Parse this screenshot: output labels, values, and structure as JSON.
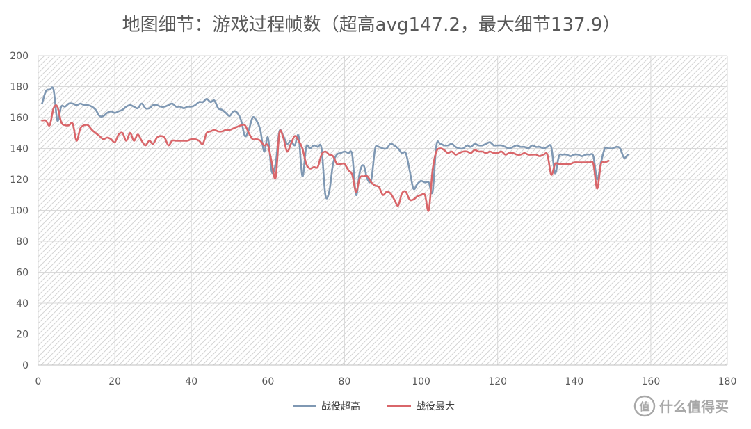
{
  "chart_data": {
    "type": "line",
    "title": "地图细节：游戏过程帧数（超高avg147.2，最大细节137.9）",
    "xlabel": "",
    "ylabel": "",
    "xlim": [
      0,
      180
    ],
    "ylim": [
      0,
      200
    ],
    "x_ticks": [
      0,
      20,
      40,
      60,
      80,
      100,
      120,
      140,
      160,
      180
    ],
    "y_ticks": [
      0,
      20,
      40,
      60,
      80,
      100,
      120,
      140,
      160,
      180,
      200
    ],
    "grid": true,
    "legend": "bottom",
    "series": [
      {
        "name": "战役超高",
        "color": "#7f98b3",
        "points": [
          [
            1,
            169
          ],
          [
            2,
            177
          ],
          [
            3,
            178
          ],
          [
            4,
            178
          ],
          [
            5,
            158
          ],
          [
            6,
            167
          ],
          [
            7,
            167
          ],
          [
            8,
            169
          ],
          [
            9,
            169
          ],
          [
            10,
            168
          ],
          [
            11,
            169
          ],
          [
            12,
            168
          ],
          [
            13,
            168
          ],
          [
            14,
            167
          ],
          [
            15,
            165
          ],
          [
            16,
            161
          ],
          [
            17,
            161
          ],
          [
            18,
            163
          ],
          [
            19,
            164
          ],
          [
            20,
            163
          ],
          [
            21,
            164
          ],
          [
            22,
            165
          ],
          [
            23,
            167
          ],
          [
            24,
            168
          ],
          [
            25,
            167
          ],
          [
            26,
            166
          ],
          [
            27,
            169
          ],
          [
            28,
            166
          ],
          [
            29,
            166
          ],
          [
            30,
            168
          ],
          [
            31,
            168
          ],
          [
            32,
            167
          ],
          [
            33,
            167
          ],
          [
            34,
            168
          ],
          [
            35,
            169
          ],
          [
            36,
            167
          ],
          [
            37,
            167
          ],
          [
            38,
            166
          ],
          [
            39,
            167
          ],
          [
            40,
            167
          ],
          [
            41,
            168
          ],
          [
            42,
            170
          ],
          [
            43,
            170
          ],
          [
            44,
            172
          ],
          [
            45,
            170
          ],
          [
            46,
            171
          ],
          [
            47,
            166
          ],
          [
            48,
            165
          ],
          [
            49,
            163
          ],
          [
            50,
            161
          ],
          [
            51,
            164
          ],
          [
            52,
            163
          ],
          [
            53,
            158
          ],
          [
            54,
            148
          ],
          [
            55,
            152
          ],
          [
            56,
            160
          ],
          [
            57,
            158
          ],
          [
            58,
            152
          ],
          [
            59,
            138
          ],
          [
            60,
            147
          ],
          [
            61,
            125
          ],
          [
            62,
            130
          ],
          [
            63,
            151
          ],
          [
            64,
            148
          ],
          [
            65,
            143
          ],
          [
            66,
            145
          ],
          [
            67,
            142
          ],
          [
            68,
            148
          ],
          [
            69,
            122
          ],
          [
            70,
            141
          ],
          [
            71,
            140
          ],
          [
            72,
            142
          ],
          [
            73,
            141
          ],
          [
            74,
            140
          ],
          [
            75,
            110
          ],
          [
            76,
            112
          ],
          [
            77,
            130
          ],
          [
            78,
            136
          ],
          [
            79,
            137
          ],
          [
            80,
            138
          ],
          [
            81,
            137
          ],
          [
            82,
            136
          ],
          [
            83,
            110
          ],
          [
            84,
            125
          ],
          [
            85,
            129
          ],
          [
            86,
            120
          ],
          [
            87,
            120
          ],
          [
            88,
            140
          ],
          [
            89,
            141
          ],
          [
            90,
            140
          ],
          [
            91,
            140
          ],
          [
            92,
            143
          ],
          [
            93,
            142
          ],
          [
            94,
            140
          ],
          [
            95,
            137
          ],
          [
            96,
            137
          ],
          [
            97,
            126
          ],
          [
            98,
            114
          ],
          [
            99,
            117
          ],
          [
            100,
            119
          ],
          [
            101,
            118
          ],
          [
            102,
            118
          ],
          [
            103,
            112
          ],
          [
            104,
            142
          ],
          [
            105,
            143
          ],
          [
            106,
            142
          ],
          [
            107,
            142
          ],
          [
            108,
            143
          ],
          [
            109,
            141
          ],
          [
            110,
            140
          ],
          [
            111,
            140
          ],
          [
            112,
            142
          ],
          [
            113,
            141
          ],
          [
            114,
            143
          ],
          [
            115,
            142
          ],
          [
            116,
            142
          ],
          [
            117,
            143
          ],
          [
            118,
            144
          ],
          [
            119,
            142
          ],
          [
            120,
            142
          ],
          [
            121,
            142
          ],
          [
            122,
            141
          ],
          [
            123,
            140
          ],
          [
            124,
            141
          ],
          [
            125,
            142
          ],
          [
            126,
            141
          ],
          [
            127,
            141
          ],
          [
            128,
            140
          ],
          [
            129,
            142
          ],
          [
            130,
            141
          ],
          [
            131,
            141
          ],
          [
            132,
            140
          ],
          [
            133,
            141
          ],
          [
            134,
            141
          ],
          [
            135,
            124
          ],
          [
            136,
            135
          ],
          [
            137,
            136
          ],
          [
            138,
            136
          ],
          [
            139,
            135
          ],
          [
            140,
            136
          ],
          [
            141,
            136
          ],
          [
            142,
            135
          ],
          [
            143,
            136
          ],
          [
            144,
            136
          ],
          [
            145,
            135
          ],
          [
            146,
            120
          ],
          [
            147,
            131
          ],
          [
            148,
            140
          ],
          [
            149,
            140
          ],
          [
            150,
            140
          ],
          [
            151,
            141
          ],
          [
            152,
            140
          ],
          [
            153,
            134
          ],
          [
            154,
            136
          ]
        ]
      },
      {
        "name": "战役最大",
        "color": "#d9666a",
        "points": [
          [
            1,
            158
          ],
          [
            2,
            158
          ],
          [
            3,
            155
          ],
          [
            4,
            166
          ],
          [
            5,
            167
          ],
          [
            6,
            157
          ],
          [
            7,
            155
          ],
          [
            8,
            155
          ],
          [
            9,
            156
          ],
          [
            10,
            145
          ],
          [
            11,
            153
          ],
          [
            12,
            155
          ],
          [
            13,
            155
          ],
          [
            14,
            152
          ],
          [
            15,
            150
          ],
          [
            16,
            148
          ],
          [
            17,
            146
          ],
          [
            18,
            147
          ],
          [
            19,
            146
          ],
          [
            20,
            144
          ],
          [
            21,
            149
          ],
          [
            22,
            150
          ],
          [
            23,
            145
          ],
          [
            24,
            150
          ],
          [
            25,
            145
          ],
          [
            26,
            149
          ],
          [
            27,
            145
          ],
          [
            28,
            142
          ],
          [
            29,
            145
          ],
          [
            30,
            143
          ],
          [
            31,
            147
          ],
          [
            32,
            148
          ],
          [
            33,
            147
          ],
          [
            34,
            142
          ],
          [
            35,
            145
          ],
          [
            36,
            145
          ],
          [
            37,
            145
          ],
          [
            38,
            145
          ],
          [
            39,
            145
          ],
          [
            40,
            146
          ],
          [
            41,
            146
          ],
          [
            42,
            145
          ],
          [
            43,
            143
          ],
          [
            44,
            150
          ],
          [
            45,
            151
          ],
          [
            46,
            152
          ],
          [
            47,
            151
          ],
          [
            48,
            151
          ],
          [
            49,
            152
          ],
          [
            50,
            152
          ],
          [
            51,
            153
          ],
          [
            52,
            154
          ],
          [
            53,
            155
          ],
          [
            54,
            155
          ],
          [
            55,
            150
          ],
          [
            56,
            146
          ],
          [
            57,
            146
          ],
          [
            58,
            145
          ],
          [
            59,
            142
          ],
          [
            60,
            142
          ],
          [
            61,
            131
          ],
          [
            62,
            121
          ],
          [
            63,
            150
          ],
          [
            64,
            147
          ],
          [
            65,
            138
          ],
          [
            66,
            143
          ],
          [
            67,
            148
          ],
          [
            68,
            145
          ],
          [
            69,
            140
          ],
          [
            70,
            130
          ],
          [
            71,
            127
          ],
          [
            72,
            128
          ],
          [
            73,
            128
          ],
          [
            74,
            136
          ],
          [
            75,
            138
          ],
          [
            76,
            136
          ],
          [
            77,
            135
          ],
          [
            78,
            130
          ],
          [
            79,
            130
          ],
          [
            80,
            130
          ],
          [
            81,
            126
          ],
          [
            82,
            123
          ],
          [
            83,
            112
          ],
          [
            84,
            121
          ],
          [
            85,
            122
          ],
          [
            86,
            122
          ],
          [
            87,
            118
          ],
          [
            88,
            116
          ],
          [
            89,
            115
          ],
          [
            90,
            110
          ],
          [
            91,
            112
          ],
          [
            92,
            111
          ],
          [
            93,
            107
          ],
          [
            94,
            103
          ],
          [
            95,
            111
          ],
          [
            96,
            112
          ],
          [
            97,
            107
          ],
          [
            98,
            107
          ],
          [
            99,
            109
          ],
          [
            100,
            110
          ],
          [
            101,
            110
          ],
          [
            102,
            100
          ],
          [
            103,
            126
          ],
          [
            104,
            138
          ],
          [
            105,
            140
          ],
          [
            106,
            139
          ],
          [
            107,
            137
          ],
          [
            108,
            138
          ],
          [
            109,
            136
          ],
          [
            110,
            137
          ],
          [
            111,
            138
          ],
          [
            112,
            138
          ],
          [
            113,
            137
          ],
          [
            114,
            139
          ],
          [
            115,
            138
          ],
          [
            116,
            138
          ],
          [
            117,
            137
          ],
          [
            118,
            138
          ],
          [
            119,
            137
          ],
          [
            120,
            137
          ],
          [
            121,
            138
          ],
          [
            122,
            136
          ],
          [
            123,
            137
          ],
          [
            124,
            137
          ],
          [
            125,
            136
          ],
          [
            126,
            136
          ],
          [
            127,
            137
          ],
          [
            128,
            136
          ],
          [
            129,
            136
          ],
          [
            130,
            136
          ],
          [
            131,
            135
          ],
          [
            132,
            136
          ],
          [
            133,
            136
          ],
          [
            134,
            123
          ],
          [
            135,
            130
          ],
          [
            136,
            130
          ],
          [
            137,
            130
          ],
          [
            138,
            130
          ],
          [
            139,
            130
          ],
          [
            140,
            131
          ],
          [
            141,
            131
          ],
          [
            142,
            131
          ],
          [
            143,
            131
          ],
          [
            144,
            131
          ],
          [
            145,
            130
          ],
          [
            146,
            114
          ],
          [
            147,
            130
          ],
          [
            148,
            131
          ],
          [
            149,
            132
          ]
        ]
      }
    ]
  },
  "watermark": {
    "logo_glyph": "值",
    "text": "什么值得买"
  }
}
